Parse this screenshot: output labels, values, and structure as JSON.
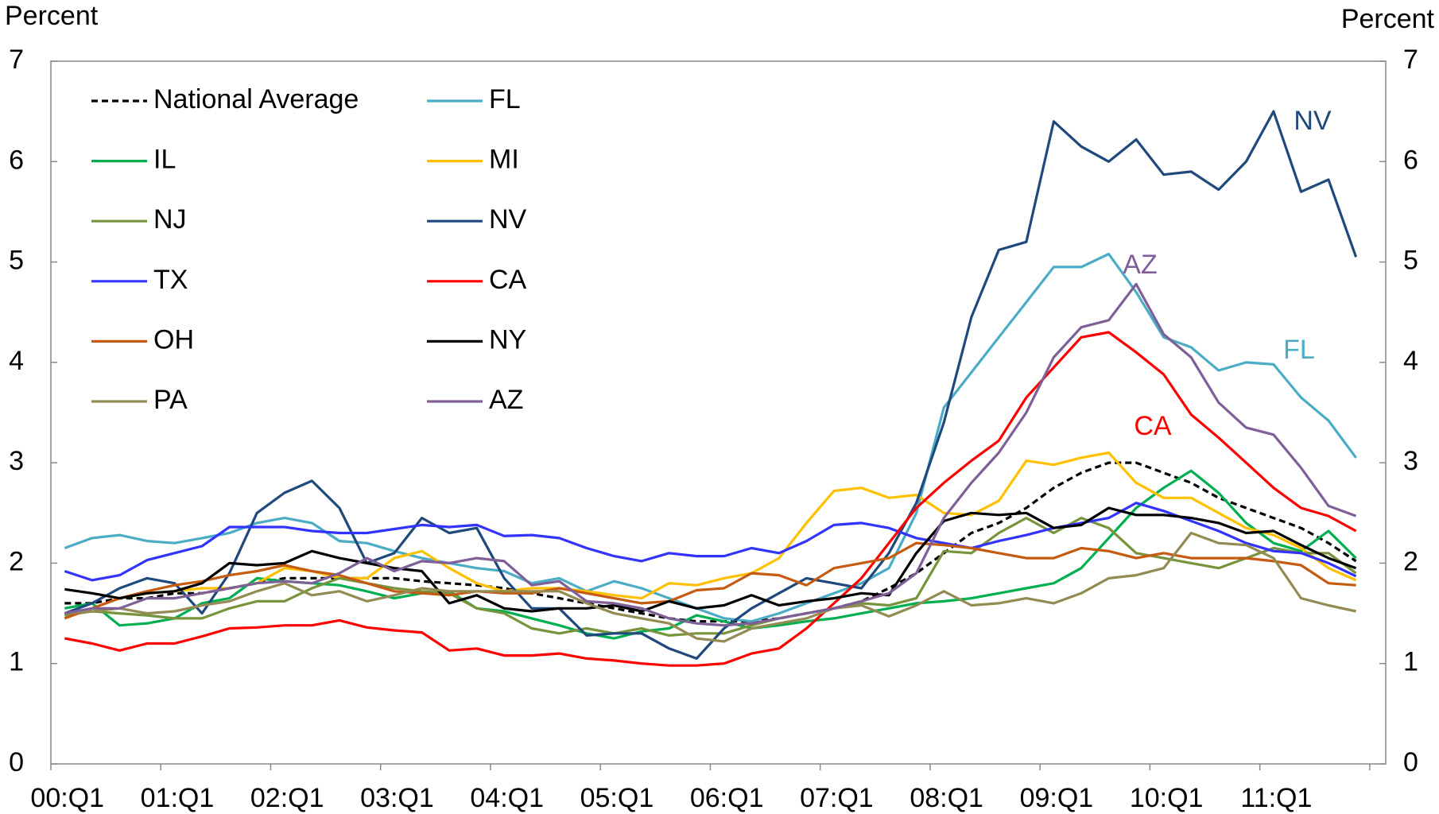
{
  "chart_data": {
    "type": "line",
    "y_label": "Percent",
    "y2_label": "Percent",
    "categories": [
      "00:Q1",
      null,
      null,
      null,
      "01:Q1",
      null,
      null,
      null,
      "02:Q1",
      null,
      null,
      null,
      "03:Q1",
      null,
      null,
      null,
      "04:Q1",
      null,
      null,
      null,
      "05:Q1",
      null,
      null,
      null,
      "06:Q1",
      null,
      null,
      null,
      "07:Q1",
      null,
      null,
      null,
      "08:Q1",
      null,
      null,
      null,
      "09:Q1",
      null,
      null,
      null,
      "10:Q1",
      null,
      null,
      null,
      "11:Q1",
      null,
      null,
      null
    ],
    "ylim": [
      0,
      7
    ],
    "yticks": [
      0,
      1,
      2,
      3,
      4,
      5,
      6,
      7
    ],
    "y2lim": [
      0,
      7
    ],
    "y2ticks": [
      0,
      1,
      2,
      3,
      4,
      5,
      6,
      7
    ],
    "grid": false,
    "legend": "upper left",
    "series": [
      {
        "name": "National Average",
        "color": "#000000",
        "dashed": true,
        "values": [
          1.6,
          1.6,
          1.65,
          1.65,
          1.7,
          1.7,
          1.75,
          1.8,
          1.85,
          1.85,
          1.85,
          1.85,
          1.85,
          1.82,
          1.8,
          1.78,
          1.75,
          1.7,
          1.65,
          1.6,
          1.55,
          1.5,
          1.45,
          1.42,
          1.42,
          1.42,
          1.45,
          1.5,
          1.55,
          1.62,
          1.75,
          1.9,
          2.1,
          2.3,
          2.4,
          2.55,
          2.75,
          2.9,
          3.0,
          3.0,
          2.9,
          2.8,
          2.65,
          2.55,
          2.45,
          2.35,
          2.2,
          2.02
        ]
      },
      {
        "name": "FL",
        "color": "#4bacc6",
        "values": [
          2.15,
          2.25,
          2.28,
          2.22,
          2.2,
          2.25,
          2.3,
          2.4,
          2.45,
          2.4,
          2.22,
          2.2,
          2.12,
          2.05,
          2.0,
          1.95,
          1.92,
          1.8,
          1.85,
          1.72,
          1.82,
          1.75,
          1.65,
          1.55,
          1.45,
          1.42,
          1.5,
          1.6,
          1.7,
          1.8,
          1.95,
          2.5,
          3.55,
          3.9,
          4.25,
          4.6,
          4.95,
          4.95,
          5.08,
          4.7,
          4.25,
          4.15,
          3.92,
          4.0,
          3.98,
          3.65,
          3.42,
          3.05
        ]
      },
      {
        "name": "IL",
        "color": "#00b050",
        "values": [
          1.55,
          1.6,
          1.38,
          1.4,
          1.45,
          1.6,
          1.65,
          1.85,
          1.82,
          1.8,
          1.78,
          1.72,
          1.65,
          1.7,
          1.72,
          1.55,
          1.52,
          1.45,
          1.38,
          1.3,
          1.25,
          1.32,
          1.35,
          1.48,
          1.42,
          1.35,
          1.38,
          1.42,
          1.45,
          1.5,
          1.55,
          1.6,
          1.62,
          1.65,
          1.7,
          1.75,
          1.8,
          1.95,
          2.25,
          2.55,
          2.75,
          2.92,
          2.7,
          2.4,
          2.2,
          2.12,
          2.32,
          2.05
        ]
      },
      {
        "name": "MI",
        "color": "#ffc000",
        "values": [
          1.45,
          1.55,
          1.65,
          1.7,
          1.72,
          1.75,
          1.75,
          1.8,
          1.95,
          1.92,
          1.85,
          1.85,
          2.05,
          2.12,
          1.95,
          1.8,
          1.72,
          1.75,
          1.75,
          1.72,
          1.68,
          1.65,
          1.8,
          1.78,
          1.85,
          1.9,
          2.05,
          2.4,
          2.72,
          2.75,
          2.65,
          2.68,
          2.5,
          2.48,
          2.62,
          3.02,
          2.98,
          3.05,
          3.1,
          2.8,
          2.65,
          2.65,
          2.5,
          2.35,
          2.28,
          2.15,
          1.95,
          1.83
        ]
      },
      {
        "name": "NJ",
        "color": "#77933c",
        "values": [
          1.48,
          1.52,
          1.5,
          1.48,
          1.45,
          1.45,
          1.55,
          1.62,
          1.62,
          1.75,
          1.85,
          1.8,
          1.75,
          1.72,
          1.7,
          1.55,
          1.5,
          1.35,
          1.3,
          1.35,
          1.3,
          1.35,
          1.28,
          1.3,
          1.3,
          1.38,
          1.45,
          1.5,
          1.55,
          1.6,
          1.58,
          1.65,
          2.12,
          2.1,
          2.3,
          2.45,
          2.3,
          2.45,
          2.35,
          2.1,
          2.05,
          2.0,
          1.95,
          2.05,
          2.15,
          2.1,
          2.1,
          1.9
        ]
      },
      {
        "name": "NV",
        "color": "#1f497d",
        "values": [
          1.5,
          1.6,
          1.75,
          1.85,
          1.8,
          1.5,
          1.9,
          2.5,
          2.7,
          2.82,
          2.55,
          2.0,
          2.1,
          2.45,
          2.3,
          2.35,
          1.85,
          1.55,
          1.55,
          1.28,
          1.3,
          1.3,
          1.15,
          1.05,
          1.35,
          1.55,
          1.7,
          1.85,
          1.8,
          1.75,
          2.1,
          2.6,
          3.4,
          4.45,
          5.12,
          5.2,
          6.4,
          6.15,
          6.0,
          6.22,
          5.87,
          5.9,
          5.72,
          6.0,
          6.5,
          5.7,
          5.82,
          5.05
        ]
      },
      {
        "name": "TX",
        "color": "#3333ff",
        "values": [
          1.92,
          1.83,
          1.88,
          2.03,
          2.1,
          2.17,
          2.36,
          2.36,
          2.36,
          2.32,
          2.3,
          2.3,
          2.34,
          2.38,
          2.36,
          2.38,
          2.27,
          2.28,
          2.25,
          2.15,
          2.07,
          2.02,
          2.1,
          2.07,
          2.07,
          2.15,
          2.1,
          2.22,
          2.38,
          2.4,
          2.35,
          2.25,
          2.2,
          2.15,
          2.22,
          2.28,
          2.35,
          2.4,
          2.45,
          2.6,
          2.52,
          2.42,
          2.32,
          2.2,
          2.12,
          2.1,
          2.0,
          1.87
        ]
      },
      {
        "name": "CA",
        "color": "#ff0000",
        "values": [
          1.25,
          1.2,
          1.13,
          1.2,
          1.2,
          1.27,
          1.35,
          1.36,
          1.38,
          1.38,
          1.43,
          1.36,
          1.33,
          1.31,
          1.13,
          1.15,
          1.08,
          1.08,
          1.1,
          1.05,
          1.03,
          1.0,
          0.98,
          0.98,
          1.0,
          1.1,
          1.15,
          1.35,
          1.6,
          1.85,
          2.2,
          2.55,
          2.8,
          3.02,
          3.22,
          3.65,
          3.95,
          4.25,
          4.3,
          4.1,
          3.88,
          3.48,
          3.25,
          3.0,
          2.75,
          2.55,
          2.47,
          2.32
        ]
      },
      {
        "name": "OH",
        "color": "#c55a11",
        "values": [
          1.45,
          1.55,
          1.65,
          1.72,
          1.78,
          1.82,
          1.88,
          1.92,
          1.98,
          1.92,
          1.88,
          1.8,
          1.72,
          1.7,
          1.68,
          1.72,
          1.7,
          1.7,
          1.75,
          1.7,
          1.65,
          1.6,
          1.62,
          1.73,
          1.75,
          1.9,
          1.88,
          1.78,
          1.95,
          2.0,
          2.05,
          2.2,
          2.18,
          2.15,
          2.1,
          2.05,
          2.05,
          2.15,
          2.12,
          2.05,
          2.1,
          2.05,
          2.05,
          2.05,
          2.02,
          1.98,
          1.8,
          1.78
        ]
      },
      {
        "name": "NY",
        "color": "#000000",
        "values": [
          1.74,
          1.7,
          1.65,
          1.7,
          1.72,
          1.8,
          2.0,
          1.98,
          2.0,
          2.12,
          2.05,
          2.0,
          1.95,
          1.92,
          1.6,
          1.68,
          1.55,
          1.52,
          1.55,
          1.55,
          1.58,
          1.52,
          1.62,
          1.55,
          1.58,
          1.68,
          1.58,
          1.62,
          1.65,
          1.7,
          1.68,
          2.1,
          2.42,
          2.5,
          2.48,
          2.5,
          2.35,
          2.38,
          2.55,
          2.48,
          2.48,
          2.45,
          2.4,
          2.3,
          2.32,
          2.18,
          2.05,
          1.95
        ]
      },
      {
        "name": "PA",
        "color": "#948a54",
        "values": [
          1.5,
          1.52,
          1.55,
          1.5,
          1.52,
          1.58,
          1.62,
          1.72,
          1.8,
          1.68,
          1.72,
          1.62,
          1.68,
          1.75,
          1.72,
          1.72,
          1.72,
          1.72,
          1.72,
          1.6,
          1.5,
          1.45,
          1.4,
          1.25,
          1.22,
          1.35,
          1.4,
          1.45,
          1.55,
          1.58,
          1.47,
          1.58,
          1.72,
          1.58,
          1.6,
          1.65,
          1.6,
          1.7,
          1.85,
          1.88,
          1.95,
          2.3,
          2.2,
          2.18,
          2.05,
          1.65,
          1.58,
          1.52
        ]
      },
      {
        "name": "AZ",
        "color": "#7f5f97",
        "values": [
          1.5,
          1.55,
          1.55,
          1.65,
          1.65,
          1.7,
          1.75,
          1.8,
          1.82,
          1.8,
          1.9,
          2.05,
          1.92,
          2.02,
          2.0,
          2.05,
          2.02,
          1.78,
          1.82,
          1.62,
          1.6,
          1.55,
          1.45,
          1.4,
          1.38,
          1.4,
          1.45,
          1.5,
          1.55,
          1.62,
          1.7,
          1.9,
          2.45,
          2.8,
          3.1,
          3.5,
          4.05,
          4.35,
          4.42,
          4.78,
          4.28,
          4.05,
          3.6,
          3.35,
          3.28,
          2.95,
          2.57,
          2.47
        ]
      }
    ],
    "annotations": [
      {
        "text": "NV"
      },
      {
        "text": "AZ"
      },
      {
        "text": "FL"
      },
      {
        "text": "CA"
      }
    ]
  }
}
